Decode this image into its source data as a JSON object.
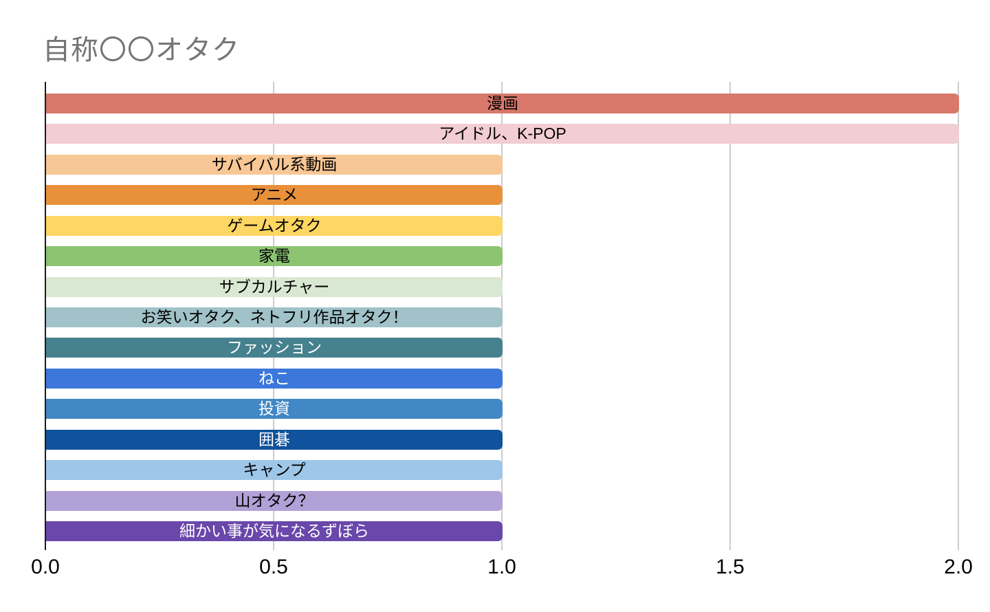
{
  "chart_data": {
    "type": "bar",
    "orientation": "horizontal",
    "title": "自称〇〇オタク",
    "xlabel": "",
    "ylabel": "",
    "xlim": [
      0,
      2
    ],
    "x_ticks": [
      "0.0",
      "0.5",
      "1.0",
      "1.5",
      "2.0"
    ],
    "x_tick_values": [
      0,
      0.5,
      1,
      1.5,
      2
    ],
    "grid": true,
    "legend": "none",
    "categories": [
      "漫画",
      "アイドル、K-POP",
      "サバイバル系動画",
      "アニメ",
      "ゲームオタク",
      "家電",
      "サブカルチャー",
      "お笑いオタク、ネトフリ作品オタク！",
      "ファッション",
      "ねこ",
      "投資",
      "囲碁",
      "キャンプ",
      "山オタク？",
      "細かい事が気になるずぼら"
    ],
    "values": [
      2,
      2,
      1,
      1,
      1,
      1,
      1,
      1,
      1,
      1,
      1,
      1,
      1,
      1,
      1
    ],
    "bar_colors": [
      "#d8796b",
      "#f2cdd1",
      "#f7c795",
      "#e8913a",
      "#fdd663",
      "#8cc472",
      "#d9e8d2",
      "#a0c2c8",
      "#46818f",
      "#3c78dc",
      "#4287c6",
      "#10529c",
      "#9ec6e8",
      "#b2a1d6",
      "#6a48ab"
    ],
    "label_text_colors": [
      "#000000",
      "#000000",
      "#000000",
      "#000000",
      "#000000",
      "#000000",
      "#000000",
      "#000000",
      "#ffffff",
      "#ffffff",
      "#ffffff",
      "#ffffff",
      "#000000",
      "#000000",
      "#ffffff"
    ]
  },
  "colors": {
    "background": "#ffffff",
    "title_text": "#757575",
    "axis_line": "#1a1a1a",
    "gridline": "#cccccc",
    "tick_text": "#000000"
  }
}
